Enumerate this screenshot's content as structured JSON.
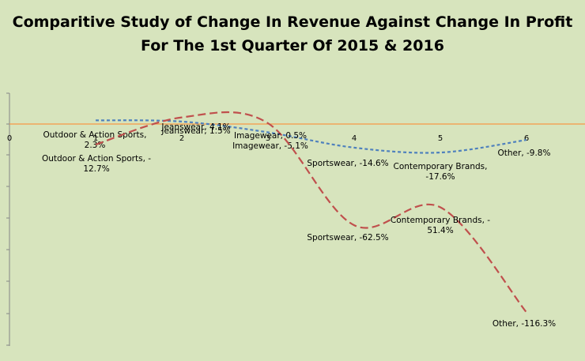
{
  "chart_data": {
    "type": "line",
    "title_lines": [
      "Comparitive Study of Change In Revenue Against Change In Profit",
      "For The 1st Quarter Of 2015 & 2016"
    ],
    "xlabel": "",
    "ylabel": "",
    "x_ticks": [
      "0",
      "1",
      "2",
      "3",
      "4",
      "5",
      "6"
    ],
    "x_range": [
      0,
      6
    ],
    "ylim": [
      -130,
      22
    ],
    "grid": false,
    "legend": "none",
    "series": [
      {
        "color": "#4f81bd",
        "dash": "dotted",
        "points": [
          {
            "x": 1,
            "y": 2.3
          },
          {
            "x": 2,
            "y": 1.5
          },
          {
            "x": 3,
            "y": -5.1
          },
          {
            "x": 4,
            "y": -14.6
          },
          {
            "x": 5,
            "y": -17.6
          },
          {
            "x": 6,
            "y": -9.8
          }
        ],
        "labels": [
          [
            "Outdoor & Action Sports,",
            "2.3%"
          ],
          [
            "Jeanswear, 1.5%"
          ],
          [
            "Imagewear, -5.1%"
          ],
          [
            "Sportswear, -14.6%"
          ],
          [
            "Contemporary Brands,",
            "-17.6%"
          ],
          [
            "Other, -9.8%"
          ]
        ]
      },
      {
        "color": "#c0504d",
        "dash": "dashed",
        "points": [
          {
            "x": 1,
            "y": -12.7
          },
          {
            "x": 2,
            "y": 4.1
          },
          {
            "x": 3,
            "y": 0.5
          },
          {
            "x": 4,
            "y": -62.5
          },
          {
            "x": 5,
            "y": -51.4
          },
          {
            "x": 6,
            "y": -116.3
          }
        ],
        "labels": [
          [
            "Outdoor & Action Sports, -",
            "12.7%"
          ],
          [
            "Jeanswear, 4.1%"
          ],
          [
            "Imagewear, 0.5%"
          ],
          [
            "Sportswear, -62.5%"
          ],
          [
            "Contemporary Brands, -",
            "51.4%"
          ],
          [
            "Other, -116.3%"
          ]
        ]
      }
    ],
    "reference_line": {
      "y": 0,
      "color": "#f79646"
    }
  }
}
